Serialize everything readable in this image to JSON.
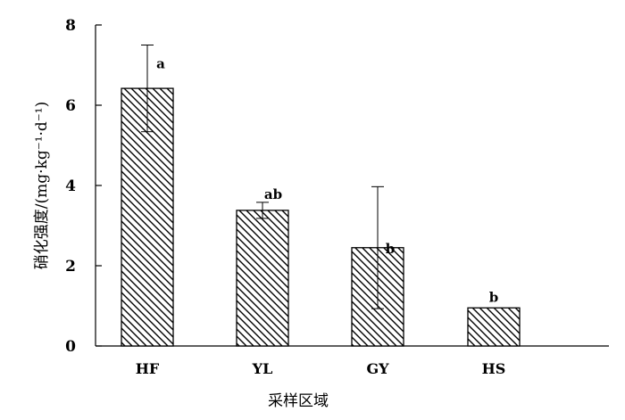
{
  "chart_data": {
    "type": "bar",
    "title": "",
    "xlabel": "采样区域",
    "ylabel": "硝化强度/(mg·kg⁻¹·d⁻¹)",
    "categories": [
      "HF",
      "YL",
      "GY",
      "HS"
    ],
    "values": [
      6.42,
      3.38,
      2.45,
      0.95
    ],
    "error": [
      1.08,
      0.2,
      1.52,
      0
    ],
    "significance": [
      "a",
      "ab",
      "b",
      "b"
    ],
    "ylim": [
      0,
      8
    ],
    "yticks": [
      "0",
      "2",
      "4",
      "6",
      "8"
    ],
    "grid": false,
    "bar_pattern": "diagonal-hatch",
    "bar_color": "#000000"
  }
}
